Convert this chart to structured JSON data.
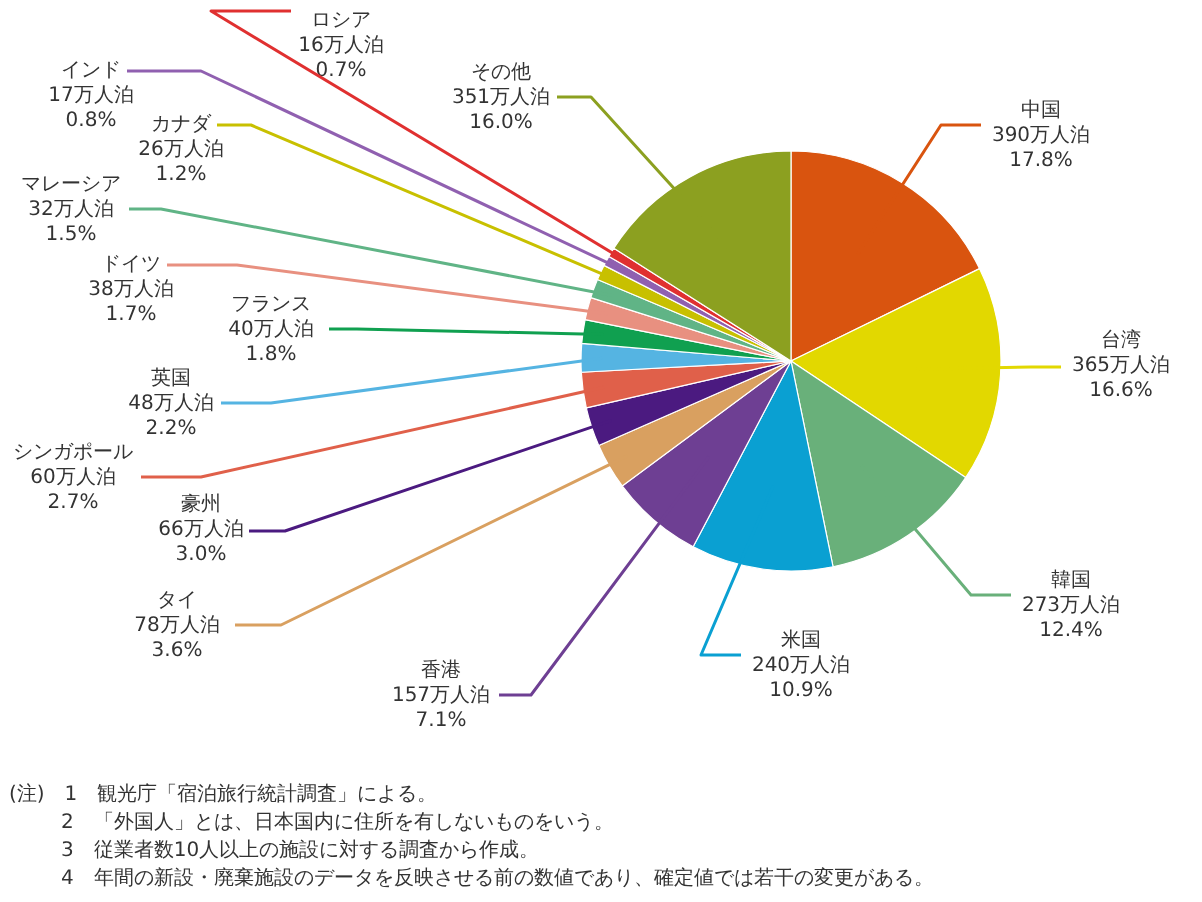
{
  "chart_data": {
    "type": "pie",
    "categories": [
      "中国",
      "台湾",
      "韓国",
      "米国",
      "香港",
      "タイ",
      "豪州",
      "シンガポール",
      "英国",
      "フランス",
      "ドイツ",
      "マレーシア",
      "カナダ",
      "インド",
      "ロシア",
      "その他"
    ],
    "values": [
      390,
      365,
      273,
      240,
      157,
      78,
      66,
      60,
      48,
      40,
      38,
      32,
      26,
      17,
      16,
      351
    ],
    "colors": [
      "#d9540f",
      "#e2d800",
      "#69b07a",
      "#0aa0d2",
      "#6e3f93",
      "#d9a060",
      "#4b1a80",
      "#e0604a",
      "#55b4e2",
      "#10a050",
      "#e89080",
      "#60b486",
      "#c8c000",
      "#9060b0",
      "#e03030",
      "#8ca020"
    ],
    "value_labels": [
      "390万人泊\n17.8%",
      "365万人泊\n16.6%",
      "273万人泊\n12.4%",
      "240万人泊\n10.9%",
      "157万人泊\n7.1%",
      "78万人泊\n3.6%",
      "66万人泊\n3.0%",
      "60万人泊\n2.7%",
      "48万人泊\n2.2%",
      "40万人泊\n1.8%",
      "38万人泊\n1.7%",
      "32万人泊\n1.5%",
      "26万人泊\n1.2%",
      "17万人泊\n0.8%",
      "16万人泊\n0.7%",
      "351万人泊\n16.0%"
    ],
    "annotations": [
      "(注)　1　観光庁「宿泊旅行統計調査」による。",
      "2　「外国人」とは、日本国内に住所を有しないものをいう。",
      "3　従業者数10人以上の施設に対する調査から作成。",
      "4　年間の新設・廃棄施設のデータを反映させる前の数値であり、確定値では若干の変更がある。"
    ]
  }
}
